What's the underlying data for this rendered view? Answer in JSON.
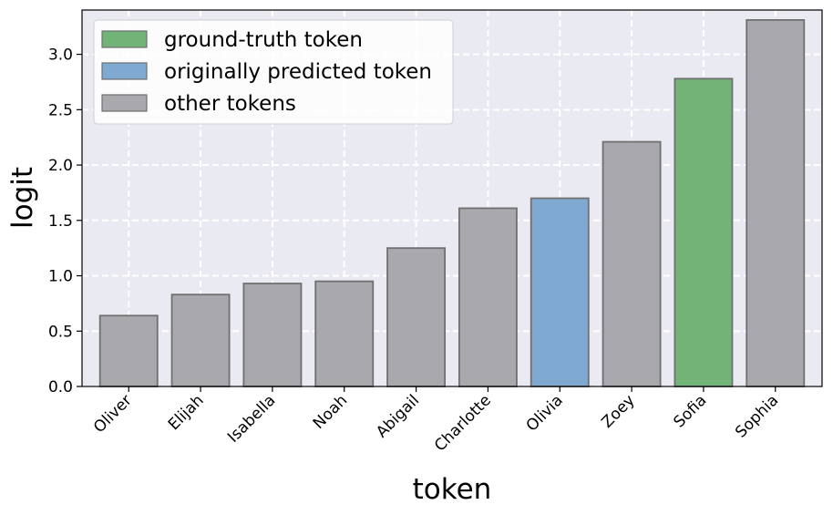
{
  "chart_data": {
    "type": "bar",
    "title": "",
    "xlabel": "token",
    "ylabel": "logit",
    "ylim": [
      0,
      3.4
    ],
    "yticks": [
      "0.0",
      "0.5",
      "1.0",
      "1.5",
      "2.0",
      "2.5",
      "3.0"
    ],
    "grid": true,
    "legend_position": "top-left",
    "categories": [
      "Oliver",
      "Elijah",
      "Isabella",
      "Noah",
      "Abigail",
      "Charlotte",
      "Olivia",
      "Zoey",
      "Sofia",
      "Sophia"
    ],
    "values": [
      0.64,
      0.83,
      0.93,
      0.95,
      1.25,
      1.61,
      1.7,
      2.21,
      2.78,
      3.31
    ],
    "bar_roles": [
      "other",
      "other",
      "other",
      "other",
      "other",
      "other",
      "predicted",
      "other",
      "ground_truth",
      "other"
    ],
    "legend": [
      {
        "role": "ground_truth",
        "label": "ground-truth token",
        "color": "#72b377"
      },
      {
        "role": "predicted",
        "label": "originally predicted token",
        "color": "#80a9d2"
      },
      {
        "role": "other",
        "label": "other tokens",
        "color": "#a8a8ad"
      }
    ],
    "background_color": "#eaeaf2"
  }
}
